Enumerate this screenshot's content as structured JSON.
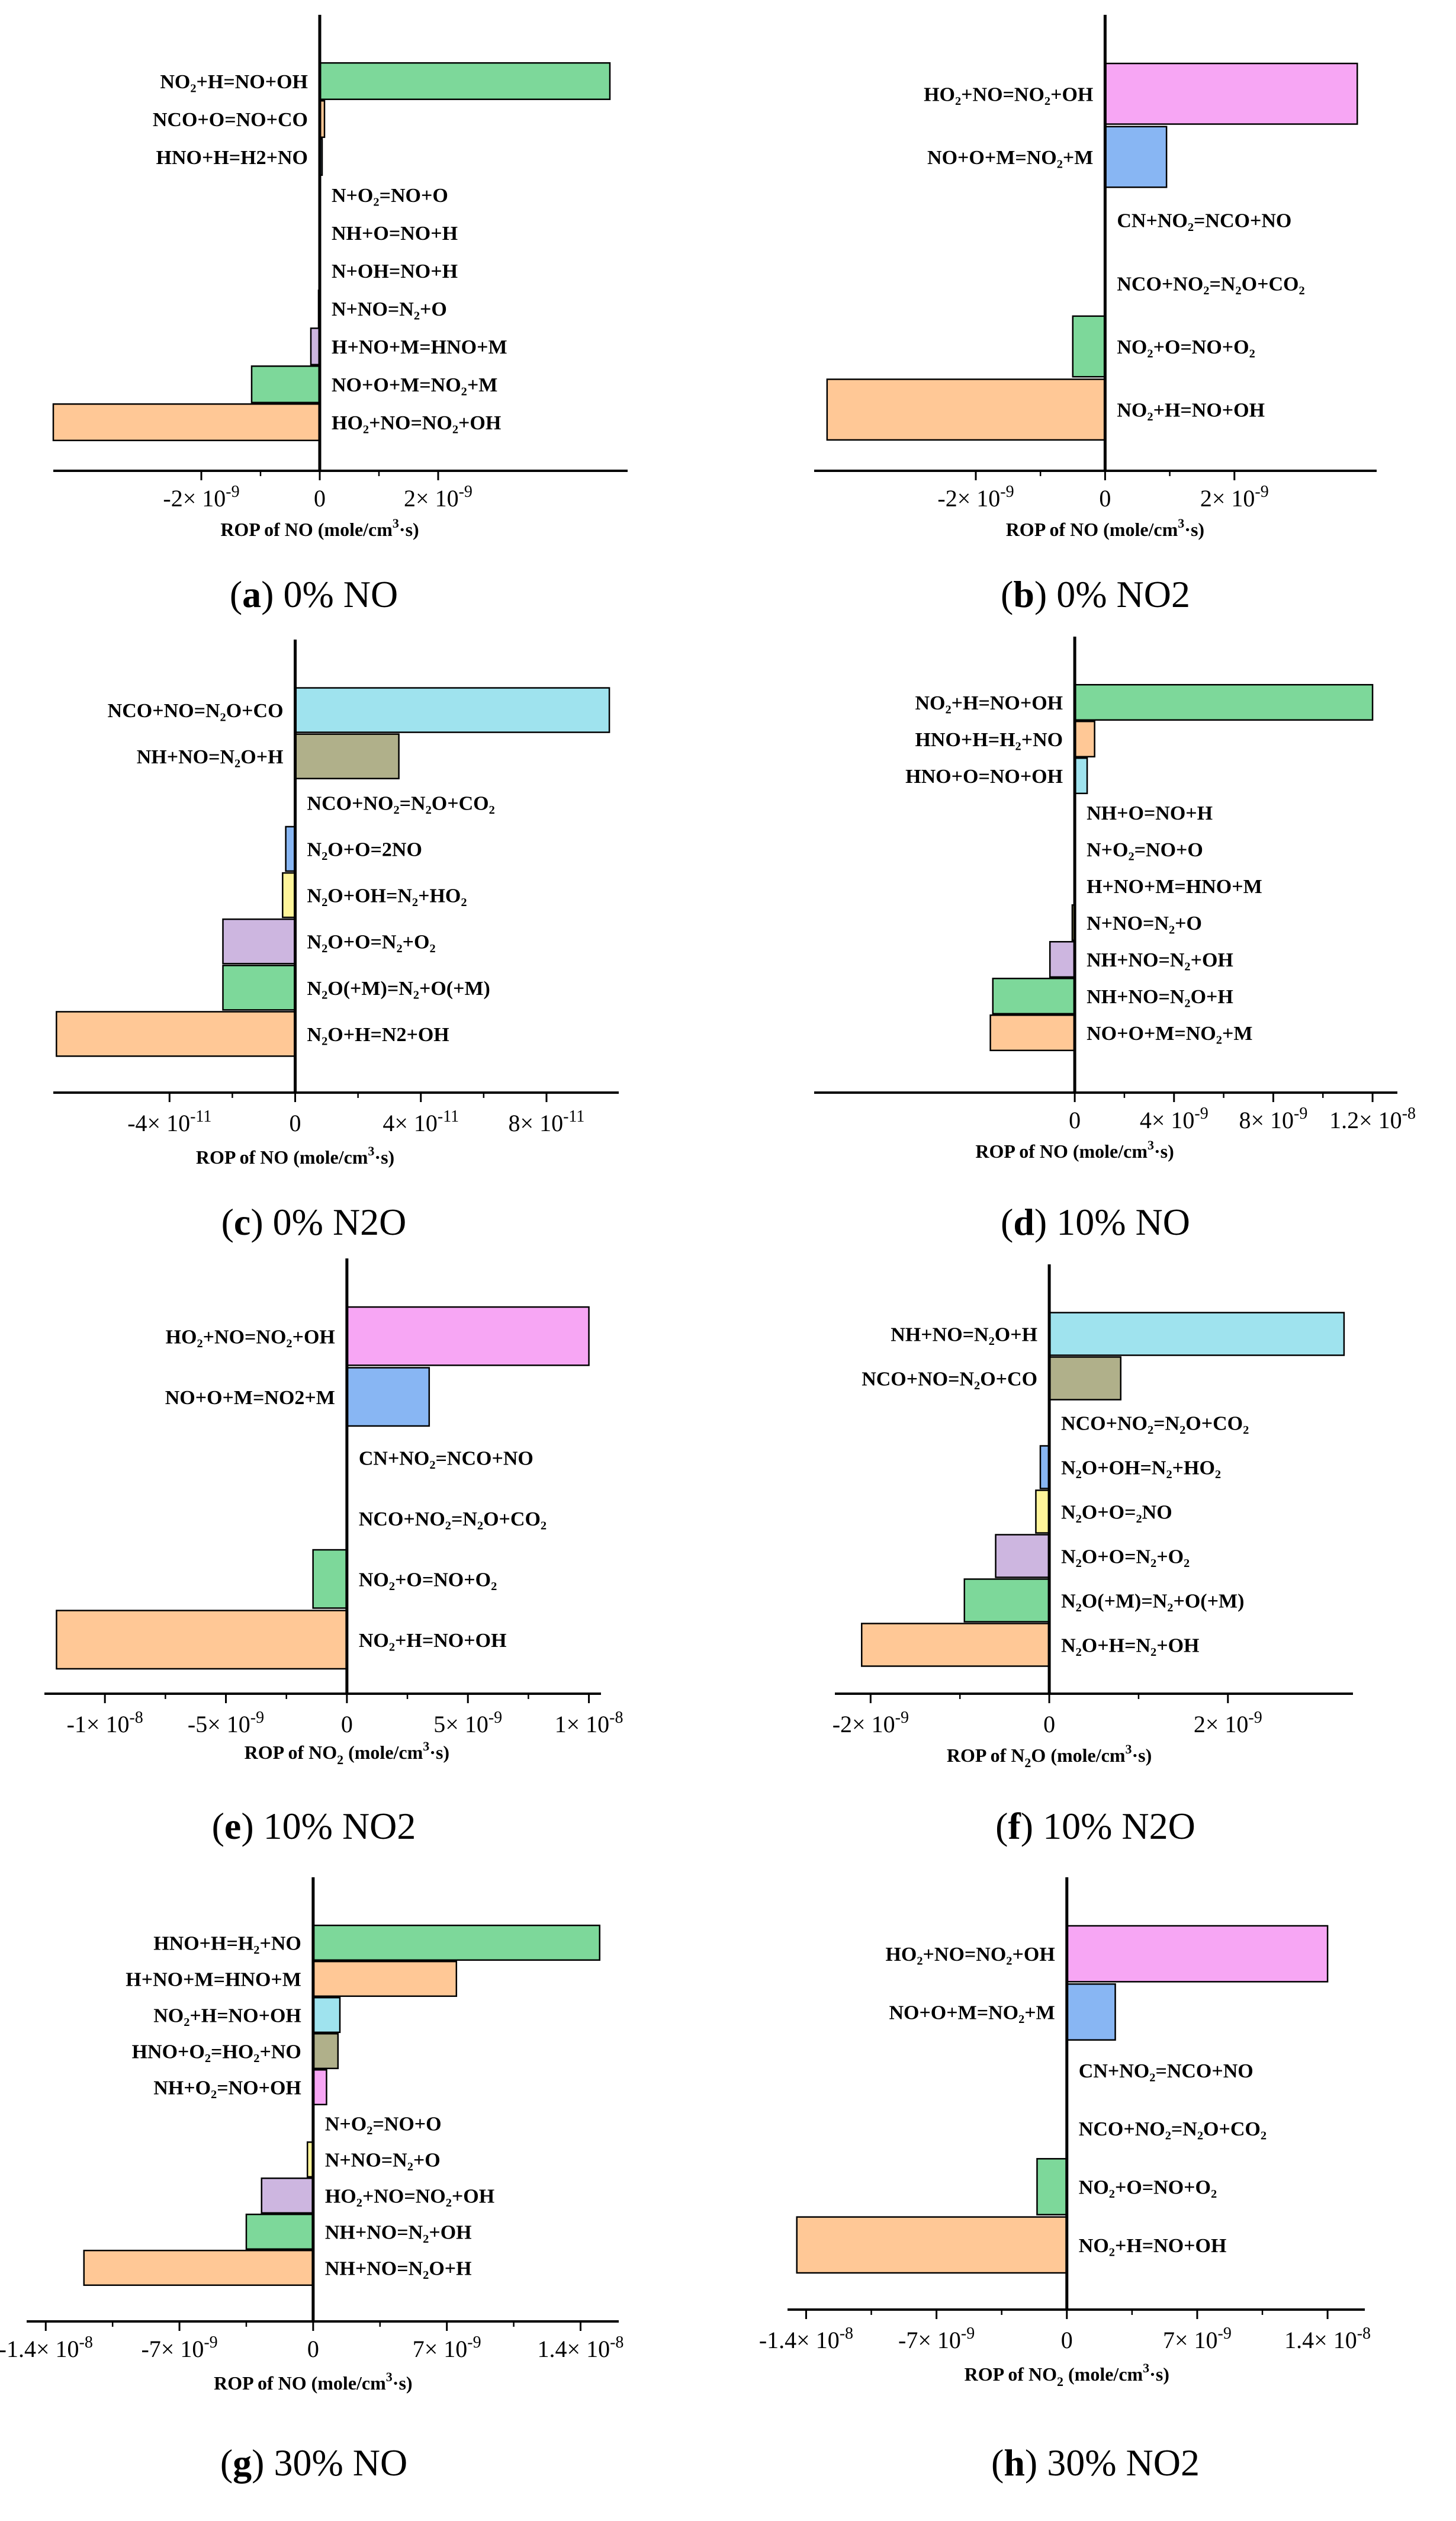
{
  "colors": {
    "green": "#7dd89a",
    "orange": "#ffc896",
    "blue": "#88b6f3",
    "cyan": "#9fe3ee",
    "purple": "#cdb6e0",
    "pink": "#f7a6f4",
    "olive": "#b0b08a",
    "yellow": "#fff59a",
    "pale": "#b9ddee"
  },
  "chart_data": [
    {
      "type": "bar",
      "orientation": "horizontal",
      "caption_letter": "a",
      "caption_text": " 0% NO",
      "xlabel_pre": "ROP of NO (mole/cm",
      "xlabel_sup": "3",
      "xlabel_post": "·s)",
      "xlim": [
        -4.5e-09,
        5.2e-09
      ],
      "ticks": [
        {
          "value": -2e-09,
          "mantissa": "-2",
          "exp": "-9"
        },
        {
          "value": 0,
          "mantissa": "0",
          "exp": ""
        },
        {
          "value": 2e-09,
          "mantissa": "2",
          "exp": "-9"
        }
      ],
      "bars": [
        {
          "label": "NO₂+H=NO+OH",
          "value": 4.9e-09,
          "color": "green"
        },
        {
          "label": "NCO+O=NO+CO",
          "value": 8e-11,
          "color": "orange"
        },
        {
          "label": "HNO+H=H2+NO",
          "value": 4e-11,
          "color": "pale"
        },
        {
          "label": "N+O₂=NO+O",
          "value": 0,
          "color": "green"
        },
        {
          "label": "NH+O=NO+H",
          "value": 0,
          "color": "green"
        },
        {
          "label": "N+OH=NO+H",
          "value": 0,
          "color": "green"
        },
        {
          "label": "N+NO=N₂+O",
          "value": -2e-11,
          "color": "yellow"
        },
        {
          "label": "H+NO+M=HNO+M",
          "value": -1.5e-10,
          "color": "purple"
        },
        {
          "label": "NO+O+M=NO₂+M",
          "value": -1.15e-09,
          "color": "green"
        },
        {
          "label": "HO₂+NO=NO₂+OH",
          "value": -4.5e-09,
          "color": "orange"
        }
      ]
    },
    {
      "type": "bar",
      "orientation": "horizontal",
      "caption_letter": "b",
      "caption_text": " 0% NO2",
      "xlabel_pre": "ROP of NO (mole/cm",
      "xlabel_sup": "3",
      "xlabel_post": "·s)",
      "xlim": [
        -4.5e-09,
        4.2e-09
      ],
      "ticks": [
        {
          "value": -2e-09,
          "mantissa": "-2",
          "exp": "-9"
        },
        {
          "value": 0,
          "mantissa": "0",
          "exp": ""
        },
        {
          "value": 2e-09,
          "mantissa": "2",
          "exp": "-9"
        }
      ],
      "bars": [
        {
          "label": "HO₂+NO=NO₂+OH",
          "value": 3.9e-09,
          "color": "pink"
        },
        {
          "label": "NO+O+M=NO₂+M",
          "value": 9.5e-10,
          "color": "blue"
        },
        {
          "label": "CN+NO₂=NCO+NO",
          "value": 0,
          "color": "green"
        },
        {
          "label": "NCO+NO₂=N₂O+CO₂",
          "value": 0,
          "color": "green"
        },
        {
          "label": "NO₂+O=NO+O₂",
          "value": -5e-10,
          "color": "green"
        },
        {
          "label": "NO₂+H=NO+OH",
          "value": -4.3e-09,
          "color": "orange"
        }
      ]
    },
    {
      "type": "bar",
      "orientation": "horizontal",
      "caption_letter": "c",
      "caption_text": " 0% N2O",
      "xlabel_pre": "ROP of NO (mole/cm",
      "xlabel_sup": "3",
      "xlabel_post": "·s)",
      "xlim": [
        -7.7e-11,
        1.03e-10
      ],
      "ticks": [
        {
          "value": -4e-11,
          "mantissa": "-4",
          "exp": "-11"
        },
        {
          "value": 0,
          "mantissa": "0",
          "exp": ""
        },
        {
          "value": 4e-11,
          "mantissa": "4",
          "exp": "-11"
        },
        {
          "value": 8e-11,
          "mantissa": "8",
          "exp": "-11"
        }
      ],
      "bars": [
        {
          "label": "NCO+NO=N₂O+CO",
          "value": 1e-10,
          "color": "cyan"
        },
        {
          "label": "NH+NO=N₂O+H",
          "value": 3.3e-11,
          "color": "olive"
        },
        {
          "label": "NCO+NO₂=N₂O+CO₂",
          "value": 0,
          "color": "green"
        },
        {
          "label": "N₂O+O=2NO",
          "value": -3e-12,
          "color": "blue"
        },
        {
          "label": "N₂O+OH=N₂+HO₂",
          "value": -4e-12,
          "color": "yellow"
        },
        {
          "label": "N₂O+O=N₂+O₂",
          "value": -2.3e-11,
          "color": "purple"
        },
        {
          "label": "N₂O(+M)=N₂+O(+M)",
          "value": -2.3e-11,
          "color": "green"
        },
        {
          "label": "N₂O+H=N2+OH",
          "value": -7.6e-11,
          "color": "orange"
        }
      ]
    },
    {
      "type": "bar",
      "orientation": "horizontal",
      "caption_letter": "d",
      "caption_text": " 10% NO",
      "xlabel_pre": "ROP of NO (mole/cm",
      "xlabel_sup": "3",
      "xlabel_post": "·s)",
      "xlim": [
        -1.05e-08,
        1.3e-08
      ],
      "ticks": [
        {
          "value": 0,
          "mantissa": "0",
          "exp": ""
        },
        {
          "value": 4e-09,
          "mantissa": "4",
          "exp": "-9"
        },
        {
          "value": 8e-09,
          "mantissa": "8",
          "exp": "-9"
        },
        {
          "value": 1.2e-08,
          "mantissa": "1.2",
          "exp": "-8"
        }
      ],
      "bars": [
        {
          "label": "NO₂+H=NO+OH",
          "value": 1.2e-08,
          "color": "green"
        },
        {
          "label": "HNO+H=H₂+NO",
          "value": 8e-10,
          "color": "orange"
        },
        {
          "label": "HNO+O=NO+OH",
          "value": 5e-10,
          "color": "cyan"
        },
        {
          "label": "NH+O=NO+H",
          "value": 0,
          "color": "green"
        },
        {
          "label": "N+O₂=NO+O",
          "value": 0,
          "color": "green"
        },
        {
          "label": "H+NO+M=HNO+M",
          "value": 0,
          "color": "green"
        },
        {
          "label": "N+NO=N₂+O",
          "value": -1e-10,
          "color": "yellow"
        },
        {
          "label": "NH+NO=N₂+OH",
          "value": -1e-09,
          "color": "purple"
        },
        {
          "label": "NH+NO=N₂O+H",
          "value": -3.3e-09,
          "color": "green"
        },
        {
          "label": "NO+O+M=NO₂+M",
          "value": -3.4e-09,
          "color": "orange"
        }
      ]
    },
    {
      "type": "bar",
      "orientation": "horizontal",
      "caption_letter": "e",
      "caption_text": " 10% NO2",
      "xlabel_pre": "ROP of NO",
      "xlabel_sub": "2",
      "xlabel_mid": " (mole/cm",
      "xlabel_sup": "3",
      "xlabel_post": "·s)",
      "xlim": [
        -1.25e-08,
        1.05e-08
      ],
      "ticks": [
        {
          "value": -1e-08,
          "mantissa": "-1",
          "exp": "-8"
        },
        {
          "value": -5e-09,
          "mantissa": "-5",
          "exp": "-9"
        },
        {
          "value": 0,
          "mantissa": "0",
          "exp": ""
        },
        {
          "value": 5e-09,
          "mantissa": "5",
          "exp": "-9"
        },
        {
          "value": 1e-08,
          "mantissa": "1",
          "exp": "-8"
        }
      ],
      "bars": [
        {
          "label": "HO₂+NO=NO₂+OH",
          "value": 1e-08,
          "color": "pink"
        },
        {
          "label": "NO+O+M=NO2+M",
          "value": 3.4e-09,
          "color": "blue"
        },
        {
          "label": "CN+NO₂=NCO+NO",
          "value": 0,
          "color": "green"
        },
        {
          "label": "NCO+NO₂=N₂O+CO₂",
          "value": 0,
          "color": "green"
        },
        {
          "label": "NO₂+O=NO+O₂",
          "value": -1.4e-09,
          "color": "green"
        },
        {
          "label": "NO₂+H=NO+OH",
          "value": -1.2e-08,
          "color": "orange"
        }
      ]
    },
    {
      "type": "bar",
      "orientation": "horizontal",
      "caption_letter": "f",
      "caption_text": " 10% N2O",
      "xlabel_pre": "ROP of N",
      "xlabel_sub": "2",
      "xlabel_mid": "O (mole/cm",
      "xlabel_sup": "3",
      "xlabel_post": "·s)",
      "xlim": [
        -2.4e-09,
        3.4e-09
      ],
      "ticks": [
        {
          "value": -2e-09,
          "mantissa": "-2",
          "exp": "-9"
        },
        {
          "value": 0,
          "mantissa": "0",
          "exp": ""
        },
        {
          "value": 2e-09,
          "mantissa": "2",
          "exp": "-9"
        }
      ],
      "bars": [
        {
          "label": "NH+NO=N₂O+H",
          "value": 3.3e-09,
          "color": "cyan"
        },
        {
          "label": "NCO+NO=N₂O+CO",
          "value": 8e-10,
          "color": "olive"
        },
        {
          "label": "NCO+NO₂=N₂O+CO₂",
          "value": 0,
          "color": "green"
        },
        {
          "label": "N₂O+OH=N₂+HO₂",
          "value": -1e-10,
          "color": "blue"
        },
        {
          "label": "N₂O+O=₂NO",
          "value": -1.5e-10,
          "color": "yellow"
        },
        {
          "label": "N₂O+O=N₂+O₂",
          "value": -6e-10,
          "color": "purple"
        },
        {
          "label": "N₂O(+M)=N₂+O(+M)",
          "value": -9.5e-10,
          "color": "green"
        },
        {
          "label": "N₂O+H=N₂+OH",
          "value": -2.1e-09,
          "color": "orange"
        }
      ]
    },
    {
      "type": "bar",
      "orientation": "horizontal",
      "caption_letter": "g",
      "caption_text": " 30% NO",
      "xlabel_pre": "ROP of NO (mole/cm",
      "xlabel_sup": "3",
      "xlabel_post": "·s)",
      "xlim": [
        -1.5e-08,
        1.6e-08
      ],
      "ticks": [
        {
          "value": -1.4e-08,
          "mantissa": "-1.4",
          "exp": "-8"
        },
        {
          "value": -7e-09,
          "mantissa": "-7",
          "exp": "-9"
        },
        {
          "value": 0,
          "mantissa": "0",
          "exp": ""
        },
        {
          "value": 7e-09,
          "mantissa": "7",
          "exp": "-9"
        },
        {
          "value": 1.4e-08,
          "mantissa": "1.4",
          "exp": "-8"
        }
      ],
      "bars": [
        {
          "label": "HNO+H=H₂+NO",
          "value": 1.5e-08,
          "color": "green"
        },
        {
          "label": "H+NO+M=HNO+M",
          "value": 7.5e-09,
          "color": "orange"
        },
        {
          "label": "NO₂+H=NO+OH",
          "value": 1.4e-09,
          "color": "cyan"
        },
        {
          "label": "HNO+O₂=HO₂+NO",
          "value": 1.3e-09,
          "color": "olive"
        },
        {
          "label": "NH+O₂=NO+OH",
          "value": 7e-10,
          "color": "pink"
        },
        {
          "label": "N+O₂=NO+O",
          "value": 0,
          "color": "green"
        },
        {
          "label": "N+NO=N₂+O",
          "value": -3e-10,
          "color": "yellow"
        },
        {
          "label": "HO₂+NO=NO₂+OH",
          "value": -2.7e-09,
          "color": "purple"
        },
        {
          "label": "NH+NO=N₂+OH",
          "value": -3.5e-09,
          "color": "green"
        },
        {
          "label": "NH+NO=N₂O+H",
          "value": -1.2e-08,
          "color": "orange"
        }
      ]
    },
    {
      "type": "bar",
      "orientation": "horizontal",
      "caption_letter": "h",
      "caption_text": " 30% NO2",
      "xlabel_pre": "ROP of NO",
      "xlabel_sub": "2",
      "xlabel_mid": " (mole/cm",
      "xlabel_sup": "3",
      "xlabel_post": "·s)",
      "xlim": [
        -1.5e-08,
        1.6e-08
      ],
      "ticks": [
        {
          "value": -1.4e-08,
          "mantissa": "-1.4",
          "exp": "-8"
        },
        {
          "value": -7e-09,
          "mantissa": "-7",
          "exp": "-9"
        },
        {
          "value": 0,
          "mantissa": "0",
          "exp": ""
        },
        {
          "value": 7e-09,
          "mantissa": "7",
          "exp": "-9"
        },
        {
          "value": 1.4e-08,
          "mantissa": "1.4",
          "exp": "-8"
        }
      ],
      "bars": [
        {
          "label": "HO₂+NO=NO₂+OH",
          "value": 1.4e-08,
          "color": "pink"
        },
        {
          "label": "NO+O+M=NO₂+M",
          "value": 2.6e-09,
          "color": "blue"
        },
        {
          "label": "CN+NO₂=NCO+NO",
          "value": 0,
          "color": "green"
        },
        {
          "label": "NCO+NO₂=N₂O+CO₂",
          "value": 0,
          "color": "green"
        },
        {
          "label": "NO₂+O=NO+O₂",
          "value": -1.6e-09,
          "color": "green"
        },
        {
          "label": "NO₂+H=NO+OH",
          "value": -1.45e-08,
          "color": "orange"
        }
      ]
    }
  ]
}
